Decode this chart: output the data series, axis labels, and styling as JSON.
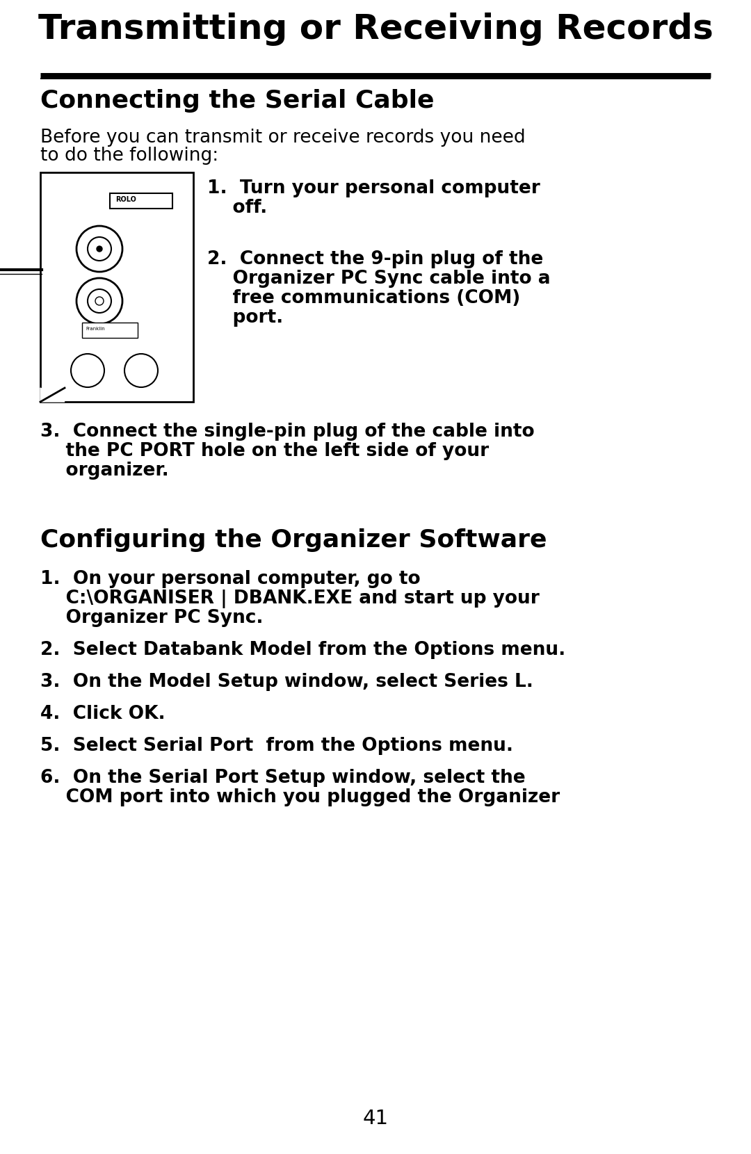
{
  "bg_color": "#ffffff",
  "title": "Transmitting or Receiving Records",
  "section1_heading": "Connecting the Serial Cable",
  "section1_intro_line1": "Before you can transmit or receive records you need",
  "section1_intro_line2": "to do the following:",
  "section1_item1_line1": "1.  Turn your personal computer",
  "section1_item1_line2": "    off.",
  "section1_item2_line1": "2.  Connect the 9-pin plug of the",
  "section1_item2_line2": "    Organizer PC Sync cable into a",
  "section1_item2_line3": "    free communications (COM)",
  "section1_item2_line4": "    port.",
  "section1_item3_line1": "3.  Connect the single-pin plug of the cable into",
  "section1_item3_line2": "    the PC PORT hole on the left side of your",
  "section1_item3_line3": "    organizer.",
  "section2_heading": "Configuring the Organizer Software",
  "section2_item1_line1": "1.  On your personal computer, go to",
  "section2_item1_line2": "    C:\\ORGANISER | DBANK.EXE and start up your",
  "section2_item1_line3": "    Organizer PC Sync.",
  "section2_item2": "2.  Select Databank Model from the Options menu.",
  "section2_item3": "3.  On the Model Setup window, select Series L.",
  "section2_item4": "4.  Click OK.",
  "section2_item5": "5.  Select Serial Port  from the Options menu.",
  "section2_item6_line1": "6.  On the Serial Port Setup window, select the",
  "section2_item6_line2": "    COM port into which you plugged the Organizer",
  "page_number": "41",
  "title_fontsize": 36,
  "heading_fontsize": 26,
  "body_fontsize": 19,
  "bold_body_fontsize": 19,
  "intro_fontsize": 19
}
